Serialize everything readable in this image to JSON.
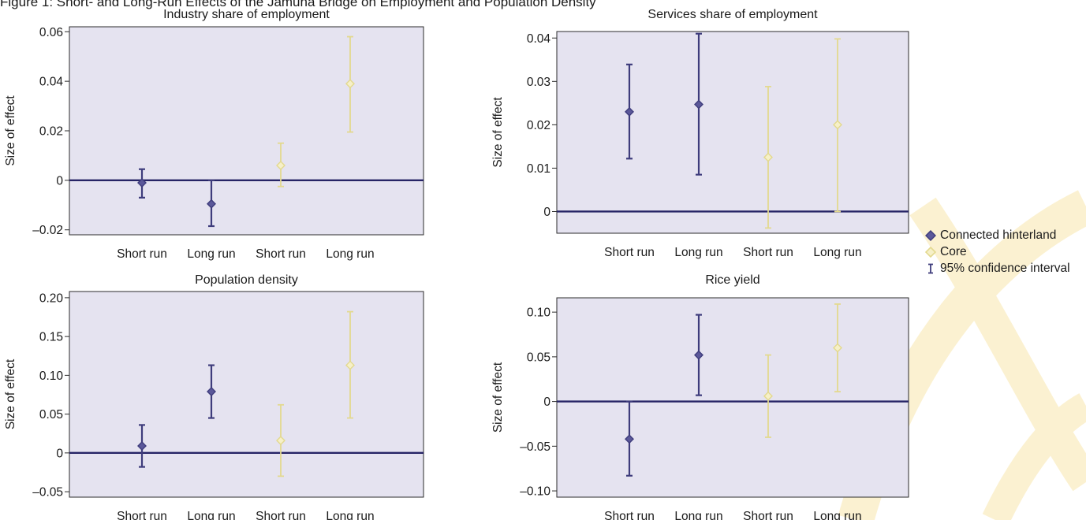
{
  "figure": {
    "title": "Figure 1: Short- and Long-Run Effects of the Jamuna Bridge on Employment and Population Density"
  },
  "colors": {
    "plot_background": "#e5e3f0",
    "connected_hinterland": "#3e3c7c",
    "core": "#e3d98f",
    "zero_line": "#262466",
    "watermark": "#fbf1d1"
  },
  "legend": {
    "placement": "right",
    "items": [
      {
        "label": "Connected hinterland",
        "symbol": "filled-diamond",
        "color": "#3e3c7c"
      },
      {
        "label": "Core",
        "symbol": "open-diamond",
        "color": "#e3d98f"
      },
      {
        "label": "95% confidence interval",
        "symbol": "error-bar-icon",
        "color": "#3e3c7c"
      }
    ]
  },
  "chart_data": [
    {
      "type": "scatter",
      "title": "Industry share of employment",
      "ylabel": "Size of effect",
      "categories": [
        "Short run",
        "Long run",
        "Short run",
        "Long run"
      ],
      "ylim": [
        -0.022,
        0.062
      ],
      "yticks": [
        -0.02,
        0,
        0.02,
        0.04,
        0.06
      ],
      "ytick_labels": [
        "–0.02",
        "0",
        "0.02",
        "0.04",
        "0.06"
      ],
      "zero_line": 0,
      "series": [
        {
          "name": "Connected hinterland",
          "points": [
            {
              "x": "Short run",
              "y": -0.001,
              "lower": -0.007,
              "upper": 0.0045
            },
            {
              "x": "Long run",
              "y": -0.0095,
              "lower": -0.0185,
              "upper": 0.0
            }
          ]
        },
        {
          "name": "Core",
          "points": [
            {
              "x": "Short run",
              "y": 0.006,
              "lower": -0.0025,
              "upper": 0.015
            },
            {
              "x": "Long run",
              "y": 0.039,
              "lower": 0.0195,
              "upper": 0.058
            }
          ]
        }
      ]
    },
    {
      "type": "scatter",
      "title": "Services share of employment",
      "ylabel": "Size of effect",
      "categories": [
        "Short run",
        "Long run",
        "Short run",
        "Long run"
      ],
      "ylim": [
        -0.005,
        0.0415
      ],
      "yticks": [
        0,
        0.01,
        0.02,
        0.03,
        0.04
      ],
      "ytick_labels": [
        "0",
        "0.01",
        "0.02",
        "0.03",
        "0.04"
      ],
      "zero_line": 0,
      "series": [
        {
          "name": "Connected hinterland",
          "points": [
            {
              "x": "Short run",
              "y": 0.023,
              "lower": 0.0122,
              "upper": 0.0339
            },
            {
              "x": "Long run",
              "y": 0.0247,
              "lower": 0.0085,
              "upper": 0.041
            }
          ]
        },
        {
          "name": "Core",
          "points": [
            {
              "x": "Short run",
              "y": 0.0125,
              "lower": -0.0038,
              "upper": 0.0288
            },
            {
              "x": "Long run",
              "y": 0.02,
              "lower": 0.0,
              "upper": 0.0398
            }
          ]
        }
      ]
    },
    {
      "type": "scatter",
      "title": "Population density",
      "ylabel": "Size of effect",
      "categories": [
        "Short run",
        "Long run",
        "Short run",
        "Long run"
      ],
      "ylim": [
        -0.057,
        0.208
      ],
      "yticks": [
        -0.05,
        0,
        0.05,
        0.1,
        0.15,
        0.2
      ],
      "ytick_labels": [
        "–0.05",
        "0",
        "0.05",
        "0.10",
        "0.15",
        "0.20"
      ],
      "zero_line": 0,
      "series": [
        {
          "name": "Connected hinterland",
          "points": [
            {
              "x": "Short run",
              "y": 0.009,
              "lower": -0.018,
              "upper": 0.036
            },
            {
              "x": "Long run",
              "y": 0.079,
              "lower": 0.045,
              "upper": 0.113
            }
          ]
        },
        {
          "name": "Core",
          "points": [
            {
              "x": "Short run",
              "y": 0.016,
              "lower": -0.03,
              "upper": 0.062
            },
            {
              "x": "Long run",
              "y": 0.113,
              "lower": 0.045,
              "upper": 0.182
            }
          ]
        }
      ]
    },
    {
      "type": "scatter",
      "title": "Rice yield",
      "ylabel": "Size of effect",
      "categories": [
        "Short run",
        "Long run",
        "Short run",
        "Long run"
      ],
      "ylim": [
        -0.107,
        0.116
      ],
      "yticks": [
        -0.1,
        -0.05,
        0,
        0.05,
        0.1
      ],
      "ytick_labels": [
        "–0.10",
        "–0.05",
        "0",
        "0.05",
        "0.10"
      ],
      "zero_line": 0,
      "series": [
        {
          "name": "Connected hinterland",
          "points": [
            {
              "x": "Short run",
              "y": -0.042,
              "lower": -0.083,
              "upper": 0.0
            },
            {
              "x": "Long run",
              "y": 0.052,
              "lower": 0.007,
              "upper": 0.097
            }
          ]
        },
        {
          "name": "Core",
          "points": [
            {
              "x": "Short run",
              "y": 0.006,
              "lower": -0.04,
              "upper": 0.052
            },
            {
              "x": "Long run",
              "y": 0.06,
              "lower": 0.011,
              "upper": 0.109
            }
          ]
        }
      ]
    }
  ]
}
